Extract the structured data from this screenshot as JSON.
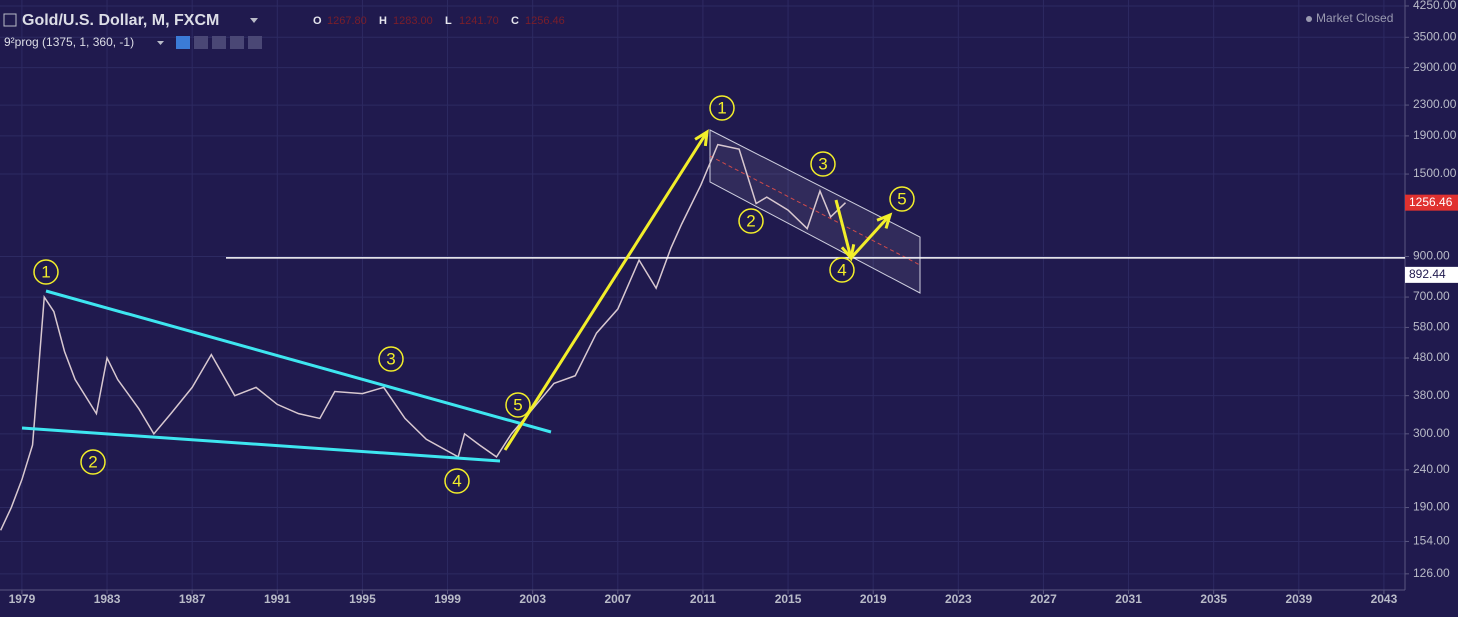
{
  "header": {
    "title": "Gold/U.S. Dollar, M, FXCM",
    "ohlc": [
      {
        "label": "O",
        "value": "1267.80"
      },
      {
        "label": "H",
        "value": "1283.00"
      },
      {
        "label": "L",
        "value": "1241.70"
      },
      {
        "label": "C",
        "value": "1256.46"
      }
    ],
    "indicator": "9²prog (1375, 1, 360, -1)",
    "status": "Market Closed"
  },
  "chart_data": {
    "type": "line",
    "log_scale": true,
    "grid": true,
    "color": "#d8c8d0",
    "x": [
      1978.0,
      1978.5,
      1979.0,
      1979.5,
      1980.05,
      1980.5,
      1981.0,
      1981.5,
      1982.5,
      1983.0,
      1983.5,
      1984.5,
      1985.2,
      1986.0,
      1987.0,
      1987.9,
      1989.0,
      1990.0,
      1991.0,
      1992.0,
      1993.0,
      1993.7,
      1995.0,
      1996.0,
      1997.0,
      1998.0,
      1999.5,
      1999.8,
      2000.5,
      2001.3,
      2002.0,
      2003.0,
      2004.0,
      2005.0,
      2006.0,
      2007.0,
      2008.0,
      2008.8,
      2009.5,
      2010.0,
      2010.9,
      2011.7,
      2012.7,
      2013.5,
      2014.0,
      2015.0,
      2015.9,
      2016.5,
      2017.0,
      2017.7
    ],
    "values": [
      165,
      190,
      226,
      280,
      700,
      640,
      500,
      420,
      340,
      480,
      420,
      350,
      300,
      340,
      400,
      490,
      380,
      400,
      360,
      340,
      330,
      390,
      385,
      400,
      330,
      290,
      260,
      300,
      280,
      260,
      300,
      350,
      410,
      430,
      560,
      650,
      880,
      740,
      950,
      1100,
      1400,
      1800,
      1750,
      1250,
      1300,
      1200,
      1070,
      1350,
      1150,
      1256.46
    ],
    "xlim": [
      1977.97,
      2043.99
    ],
    "ylim": [
      114,
      4410
    ],
    "xticks": [
      1979,
      1983,
      1987,
      1991,
      1995,
      1999,
      2003,
      2007,
      2011,
      2015,
      2019,
      2023,
      2027,
      2031,
      2035,
      2039,
      2043
    ],
    "yticks": [
      {
        "value": 126,
        "label": "126.00"
      },
      {
        "value": 154,
        "label": "154.00"
      },
      {
        "value": 190,
        "label": "190.00"
      },
      {
        "value": 240,
        "label": "240.00"
      },
      {
        "value": 300,
        "label": "300.00"
      },
      {
        "value": 380,
        "label": "380.00"
      },
      {
        "value": 480,
        "label": "480.00"
      },
      {
        "value": 580,
        "label": "580.00"
      },
      {
        "value": 700,
        "label": "700.00"
      },
      {
        "value": 900,
        "label": "900.00"
      },
      {
        "value": 1500,
        "label": "1500.00"
      },
      {
        "value": 1900,
        "label": "1900.00"
      },
      {
        "value": 2300,
        "label": "2300.00"
      },
      {
        "value": 2900,
        "label": "2900.00"
      },
      {
        "value": 3500,
        "label": "3500.00"
      },
      {
        "value": 4250,
        "label": "4250.00"
      }
    ],
    "price_badges": [
      {
        "value": 1256.46,
        "label": "1256.46",
        "color": "#e0312f"
      },
      {
        "value": 892.44,
        "label": "892.44",
        "color": "#ffffff"
      }
    ],
    "wave_labels": [
      "1",
      "2",
      "3",
      "4",
      "5",
      "1",
      "2",
      "3",
      "4",
      "5"
    ]
  }
}
